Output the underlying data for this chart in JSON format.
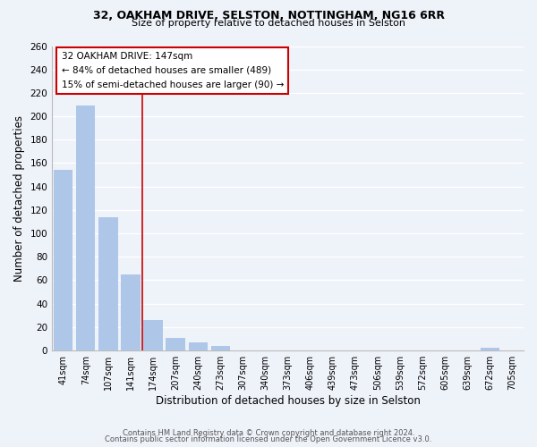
{
  "title1": "32, OAKHAM DRIVE, SELSTON, NOTTINGHAM, NG16 6RR",
  "title2": "Size of property relative to detached houses in Selston",
  "xlabel": "Distribution of detached houses by size in Selston",
  "ylabel": "Number of detached properties",
  "bar_labels": [
    "41sqm",
    "74sqm",
    "107sqm",
    "141sqm",
    "174sqm",
    "207sqm",
    "240sqm",
    "273sqm",
    "307sqm",
    "340sqm",
    "373sqm",
    "406sqm",
    "439sqm",
    "473sqm",
    "506sqm",
    "539sqm",
    "572sqm",
    "605sqm",
    "639sqm",
    "672sqm",
    "705sqm"
  ],
  "bar_values": [
    154,
    209,
    114,
    65,
    26,
    11,
    7,
    4,
    0,
    0,
    0,
    0,
    0,
    0,
    0,
    0,
    0,
    0,
    0,
    2,
    0
  ],
  "bar_color": "#aec6e8",
  "vline_x": 3.5,
  "ylim": [
    0,
    260
  ],
  "yticks": [
    0,
    20,
    40,
    60,
    80,
    100,
    120,
    140,
    160,
    180,
    200,
    220,
    240,
    260
  ],
  "annotation_title": "32 OAKHAM DRIVE: 147sqm",
  "annotation_line1": "← 84% of detached houses are smaller (489)",
  "annotation_line2": "15% of semi-detached houses are larger (90) →",
  "annotation_box_color": "#ffffff",
  "annotation_box_edge": "#cc0000",
  "vline_color": "#cc0000",
  "footer1": "Contains HM Land Registry data © Crown copyright and database right 2024.",
  "footer2": "Contains public sector information licensed under the Open Government Licence v3.0.",
  "background_color": "#eef2f9",
  "grid_color": "#ffffff"
}
